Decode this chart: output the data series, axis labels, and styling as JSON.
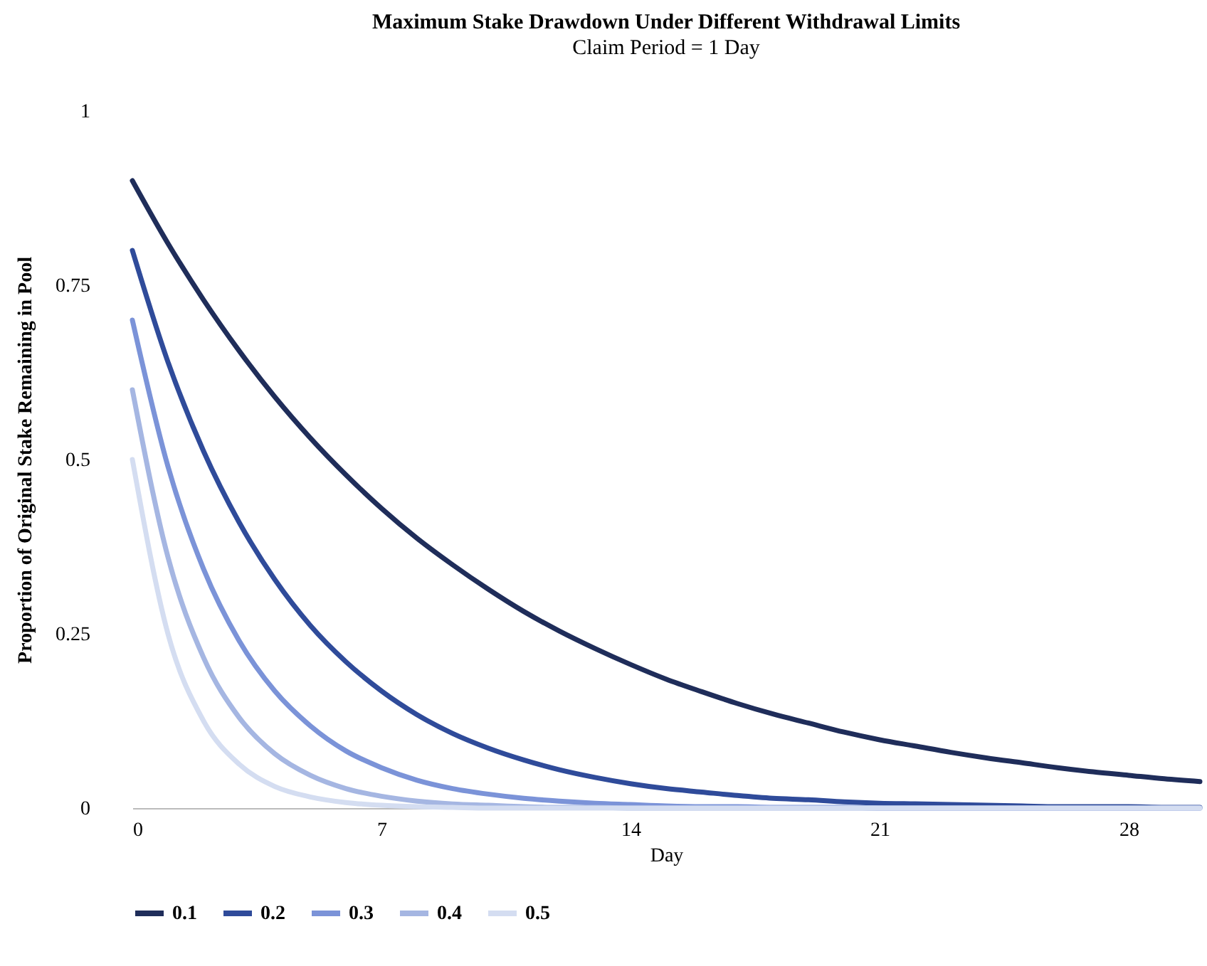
{
  "chart_data": {
    "type": "line",
    "title": "Maximum Stake Drawdown Under Different Withdrawal Limits",
    "subtitle": "Claim Period = 1 Day",
    "xlabel": "Day",
    "ylabel": "Proportion of Original Stake Remaining in Pool",
    "x": [
      0,
      1,
      2,
      3,
      4,
      5,
      6,
      7,
      8,
      9,
      10,
      11,
      12,
      13,
      14,
      15,
      16,
      17,
      18,
      19,
      20,
      21,
      22,
      23,
      24,
      25,
      26,
      27,
      28,
      29,
      30
    ],
    "series": [
      {
        "name": "0.1",
        "color": "#1f2d5a",
        "values": [
          0.9,
          0.81,
          0.729,
          0.656,
          0.59,
          0.531,
          0.478,
          0.43,
          0.387,
          0.349,
          0.314,
          0.282,
          0.254,
          0.229,
          0.206,
          0.185,
          0.167,
          0.15,
          0.135,
          0.122,
          0.109,
          0.098,
          0.089,
          0.08,
          0.072,
          0.065,
          0.058,
          0.052,
          0.047,
          0.042,
          0.038
        ]
      },
      {
        "name": "0.2",
        "color": "#2f4b9a",
        "values": [
          0.8,
          0.64,
          0.512,
          0.41,
          0.328,
          0.262,
          0.21,
          0.168,
          0.134,
          0.107,
          0.086,
          0.069,
          0.055,
          0.044,
          0.035,
          0.028,
          0.023,
          0.018,
          0.014,
          0.012,
          0.009,
          0.007,
          0.006,
          0.005,
          0.004,
          0.003,
          0.002,
          0.002,
          0.002,
          0.001,
          0.001
        ]
      },
      {
        "name": "0.3",
        "color": "#7b93d8",
        "values": [
          0.7,
          0.49,
          0.343,
          0.24,
          0.168,
          0.118,
          0.082,
          0.058,
          0.04,
          0.028,
          0.02,
          0.014,
          0.01,
          0.007,
          0.005,
          0.003,
          0.002,
          0.002,
          0.001,
          0.001,
          0.001,
          0,
          0,
          0,
          0,
          0,
          0,
          0,
          0,
          0,
          0
        ]
      },
      {
        "name": "0.4",
        "color": "#a5b6e2",
        "values": [
          0.6,
          0.36,
          0.216,
          0.13,
          0.078,
          0.047,
          0.028,
          0.017,
          0.01,
          0.006,
          0.004,
          0.002,
          0.001,
          0.001,
          0,
          0,
          0,
          0,
          0,
          0,
          0,
          0,
          0,
          0,
          0,
          0,
          0,
          0,
          0,
          0,
          0
        ]
      },
      {
        "name": "0.5",
        "color": "#d4ddf1",
        "values": [
          0.5,
          0.25,
          0.125,
          0.063,
          0.031,
          0.016,
          0.008,
          0.004,
          0.002,
          0.001,
          0,
          0,
          0,
          0,
          0,
          0,
          0,
          0,
          0,
          0,
          0,
          0,
          0,
          0,
          0,
          0,
          0,
          0,
          0,
          0,
          0
        ]
      }
    ],
    "xlim": [
      0,
      30
    ],
    "xticks": [
      0,
      7,
      14,
      21,
      28
    ],
    "ylim": [
      0,
      1
    ],
    "yticks": [
      0,
      0.25,
      0.5,
      0.75,
      1
    ],
    "grid": false,
    "legend": "bottom",
    "marker": "none",
    "line_style": "solid"
  }
}
